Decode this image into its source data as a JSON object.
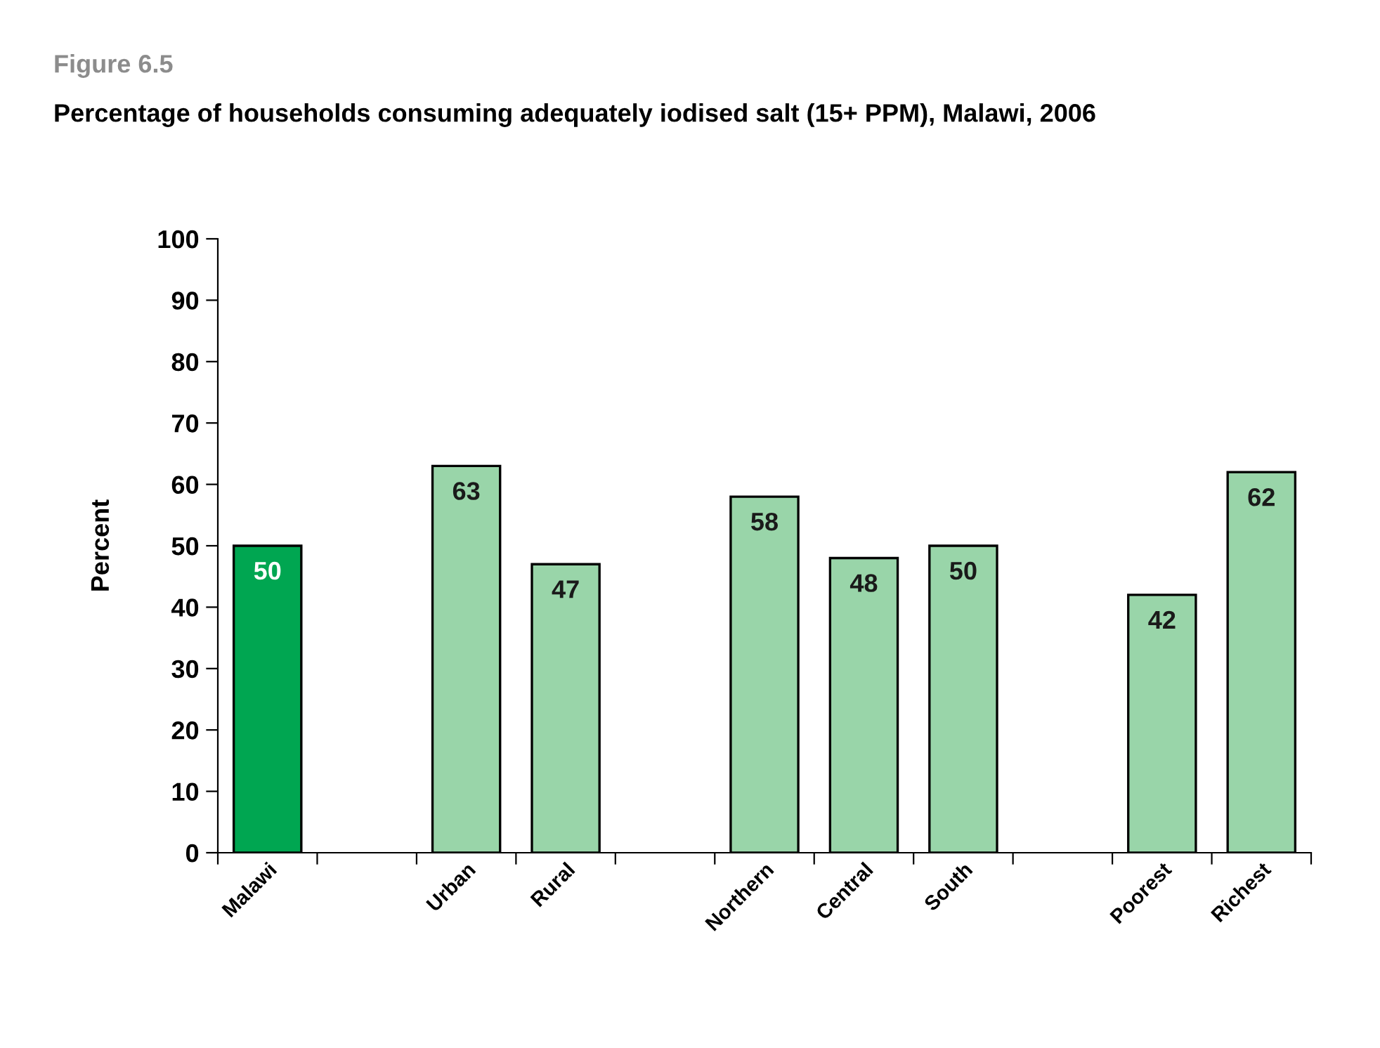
{
  "chart_data": {
    "type": "bar",
    "title": "Figure 6.5",
    "subtitle": "Percentage of households consuming adequately iodised salt (15+ PPM), Malawi, 2006",
    "ylabel": "Percent",
    "categories": [
      "Malawi",
      null,
      "Urban",
      "Rural",
      null,
      "Northern",
      "Central",
      "South",
      null,
      "Poorest",
      "Richest"
    ],
    "values": [
      50,
      null,
      63,
      47,
      null,
      58,
      48,
      50,
      null,
      42,
      62
    ],
    "colors": [
      "#00a651",
      null,
      "#99d5a9",
      "#99d5a9",
      null,
      "#99d5a9",
      "#99d5a9",
      "#99d5a9",
      null,
      "#99d5a9",
      "#99d5a9"
    ],
    "ylim": [
      0,
      100
    ],
    "yticks": [
      0,
      10,
      20,
      30,
      40,
      50,
      60,
      70,
      80,
      90,
      100
    ],
    "grid": false,
    "legend": false,
    "data_labels": true
  }
}
